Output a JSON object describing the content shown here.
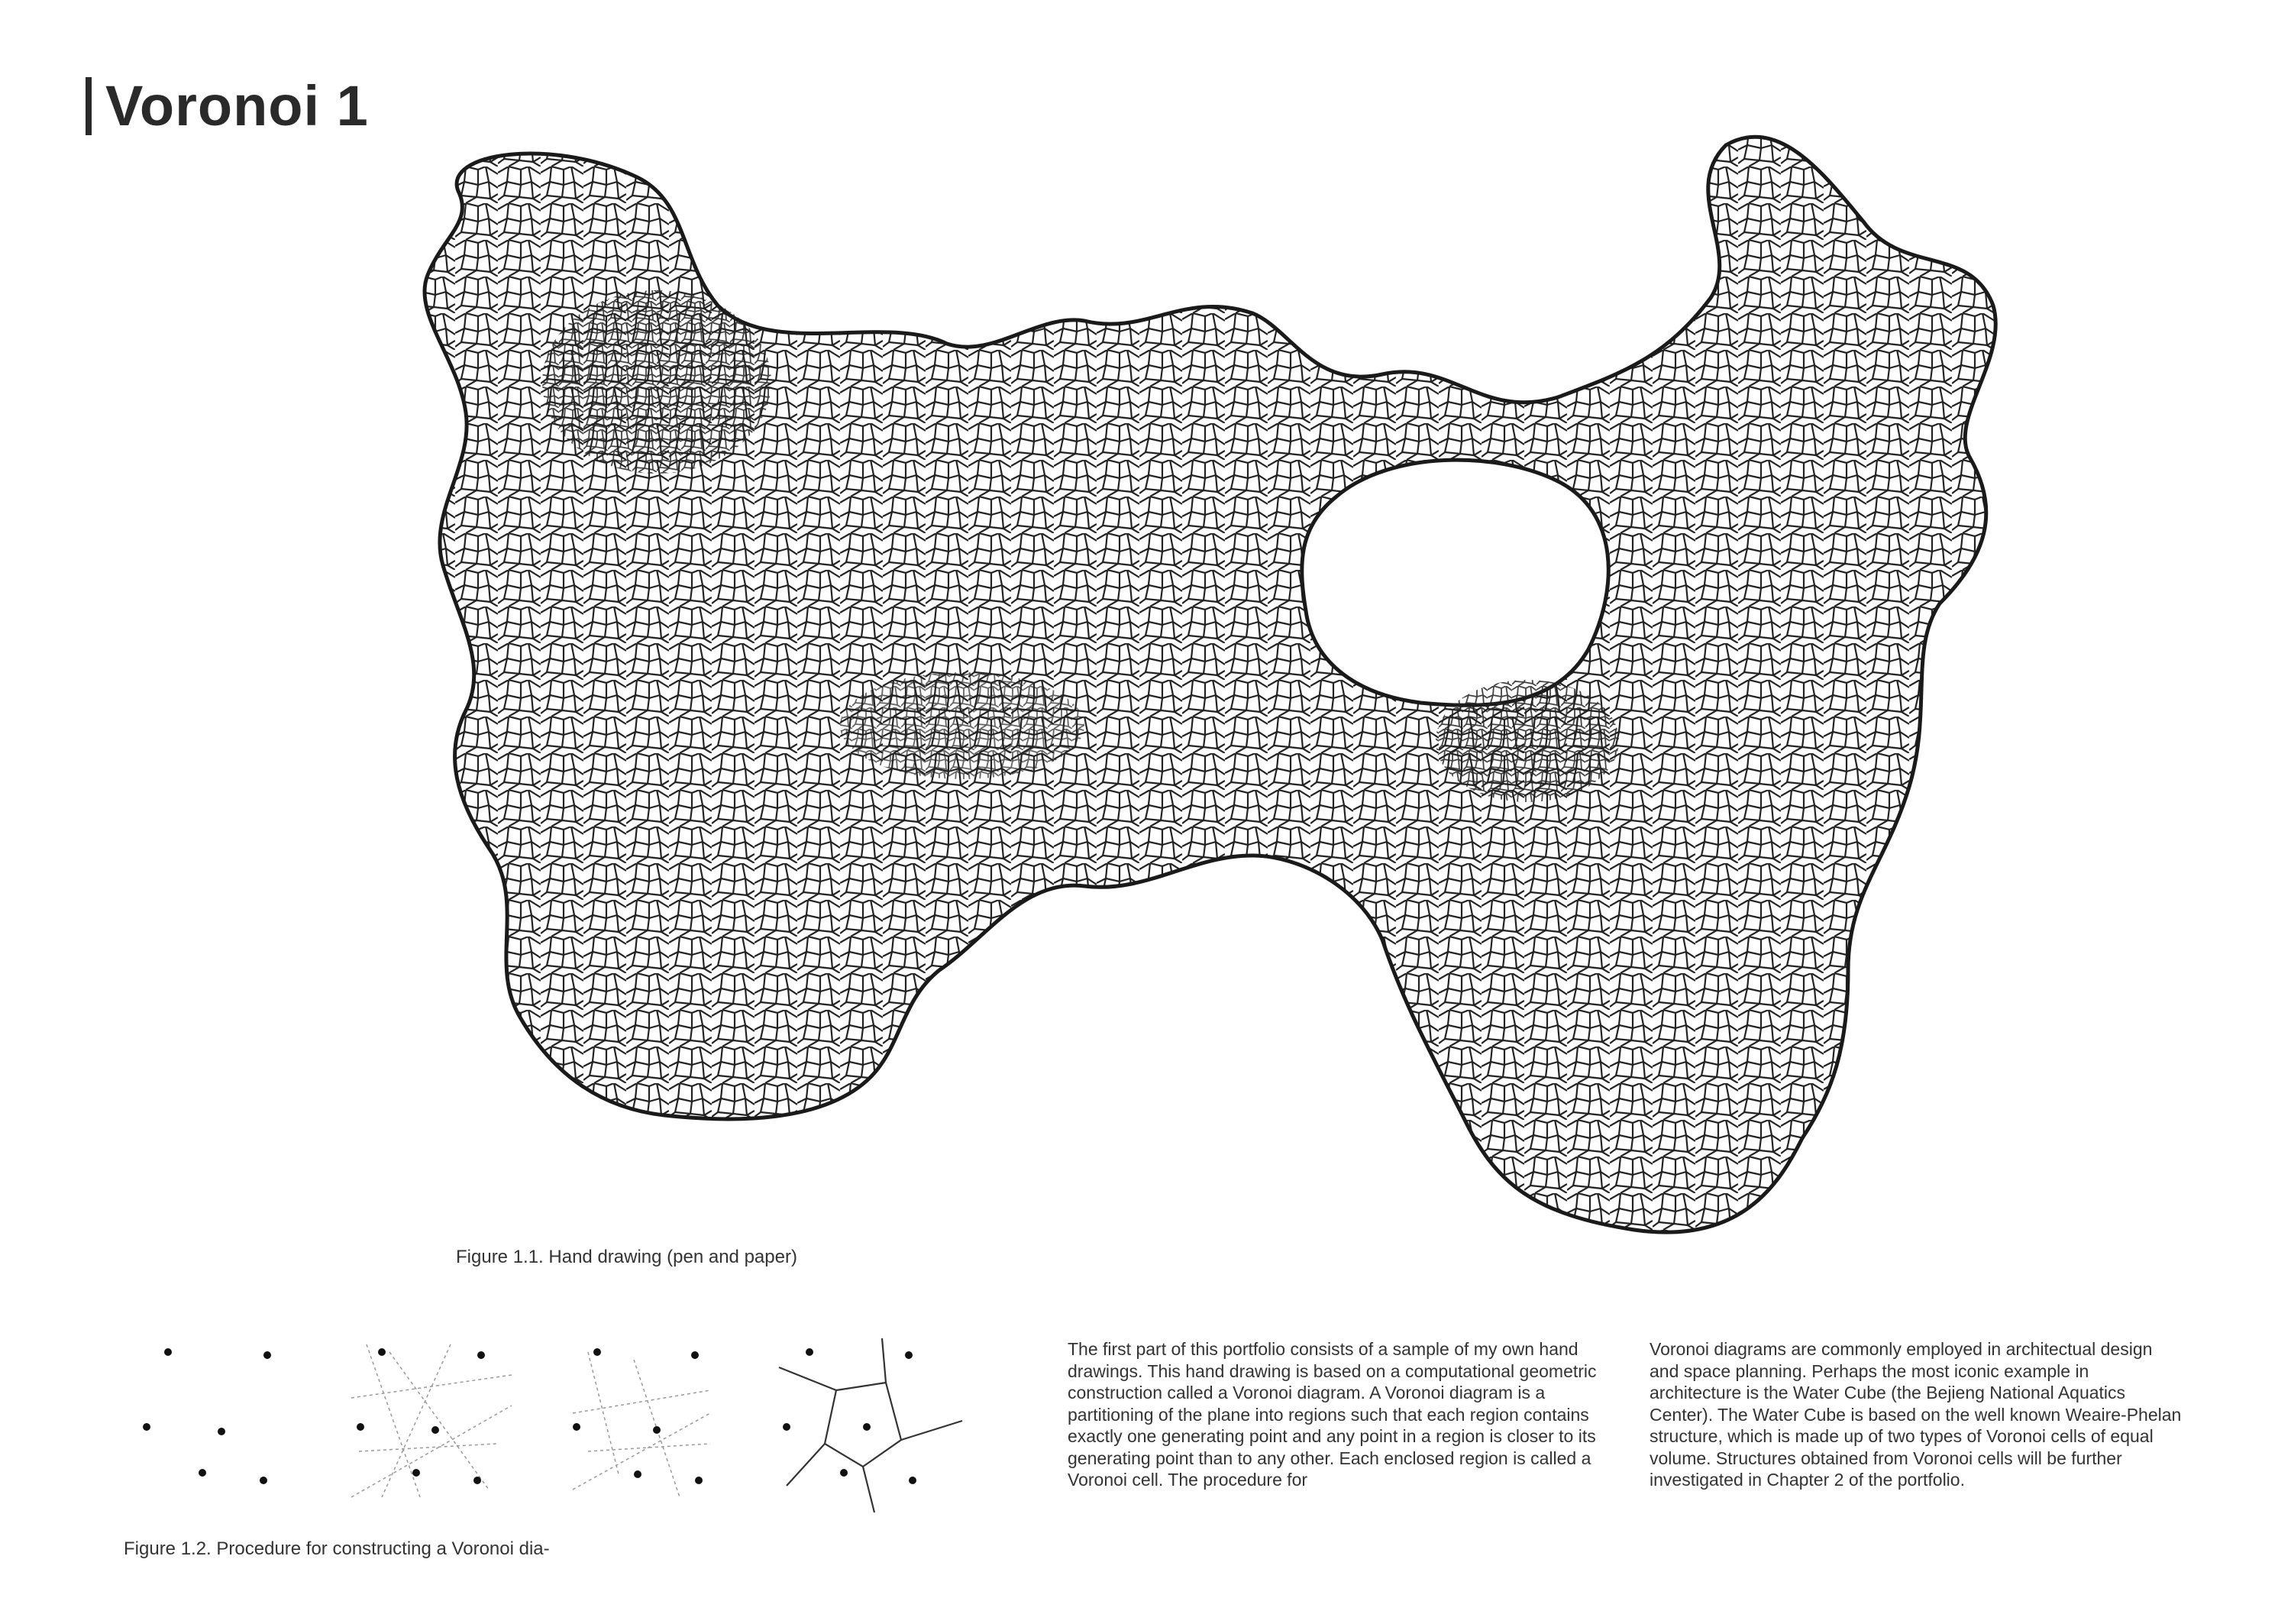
{
  "page": {
    "title": "Voronoi 1"
  },
  "figures": {
    "fig1_caption": "Figure 1.1.  Hand drawing (pen and paper)",
    "fig2_caption": "Figure 1.2.  Procedure for constructing a Voronoi dia-"
  },
  "text": {
    "col1": "The first part of this portfolio consists of a sample of my own hand drawings.  This hand drawing is based on a computational geometric construction called a Voronoi diagram.  A Voronoi diagram is a partitioning of the plane into regions such that each region contains exactly one generating point and any point in a region is closer to its generating point than to any other.  Each enclosed region is called a Voronoi cell.   The procedure for",
    "col2": "Voronoi diagrams are commonly employed in architectual design and space planning.  Perhaps the most iconic example in architecture is the Water Cube (the Bejieng National Aquatics Center).  The Water Cube is based on the well known Weaire-Phelan structure, which is made up of two types of Voronoi cells of equal volume.  Structures obtained from Voronoi cells will be further investigated in Chapter 2 of the portfolio."
  },
  "colors": {
    "ink": "#2a2a2a",
    "background": "#ffffff"
  }
}
